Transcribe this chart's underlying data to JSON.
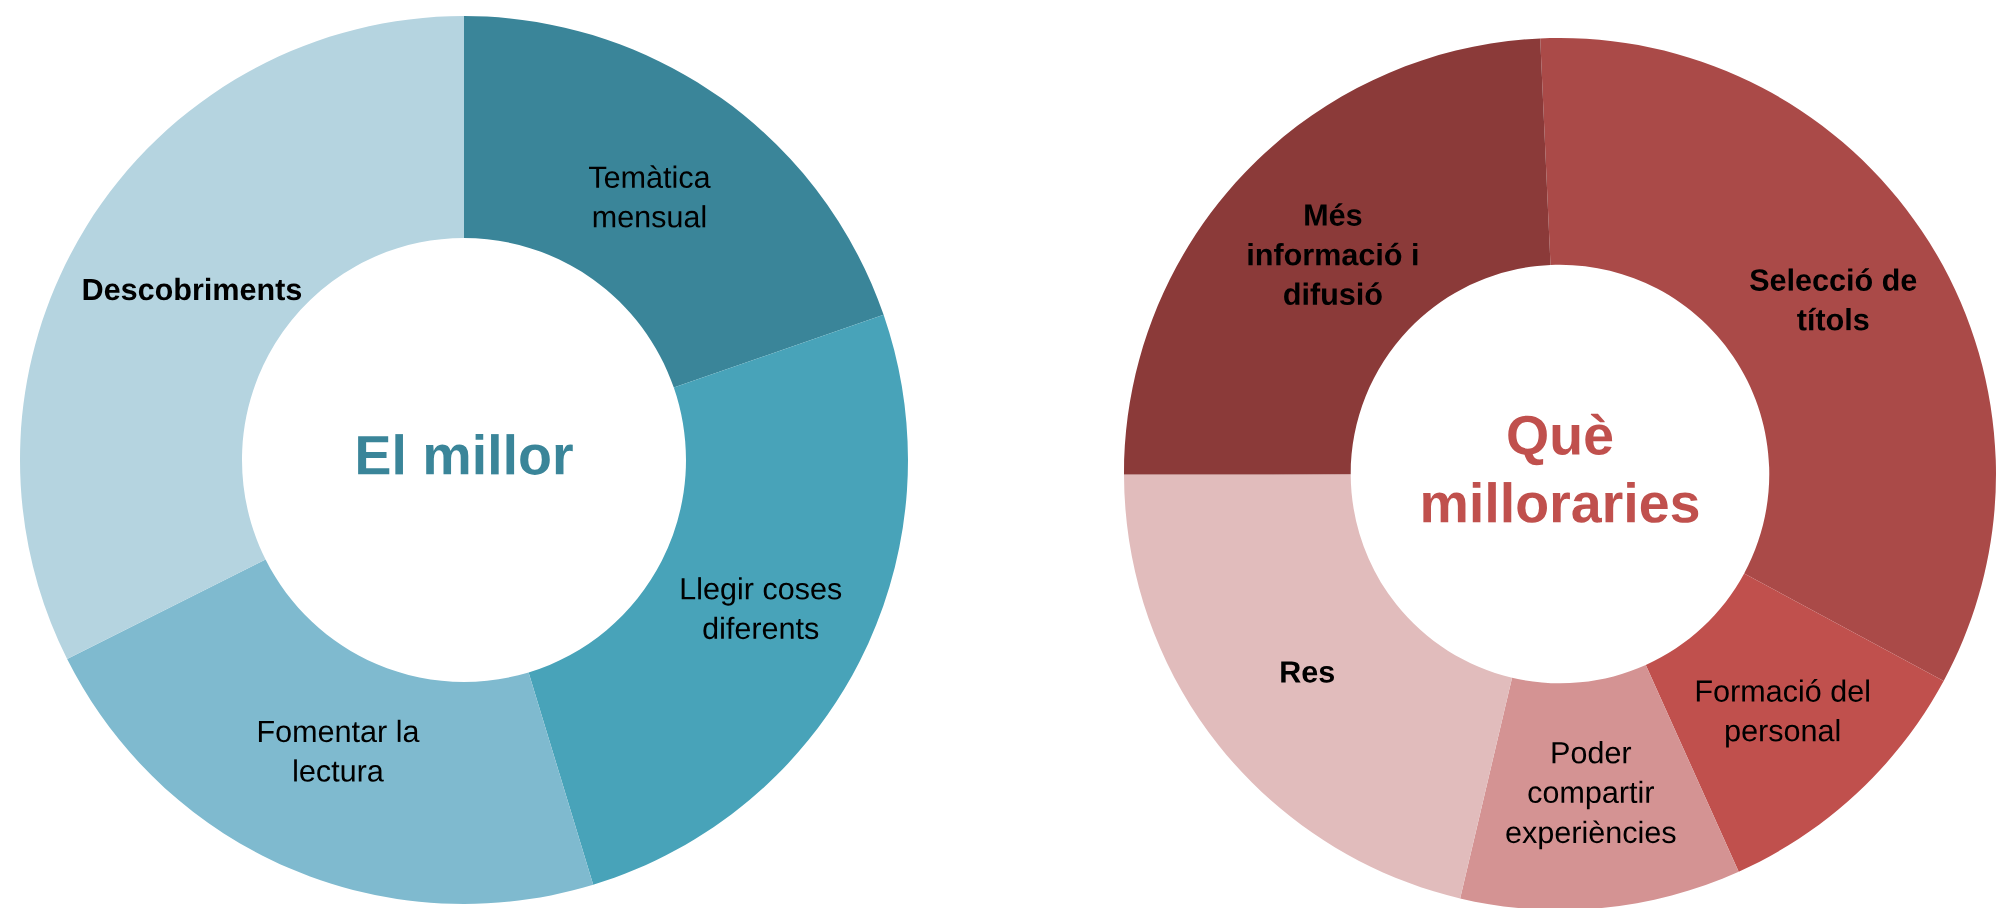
{
  "chart_data": [
    {
      "type": "donut",
      "title": "El millor",
      "categories": [
        "Temàtica\nmensual",
        "Llegir coses\ndiferents",
        "Fomentar la\nlectura",
        "Descobriments"
      ],
      "values": [
        19.7,
        25.6,
        22.3,
        32.4
      ],
      "colors": [
        "#3a8599",
        "#48a3b9",
        "#7fbacf",
        "#b5d4e0"
      ],
      "legend": false
    },
    {
      "type": "donut",
      "title": "Què\nmilloraries",
      "categories": [
        "Selecció de\ntítols",
        "Formació del\npersonal",
        "Poder\ncompartir\nexperiències",
        "Res",
        "Més\ninformació i\ndifusió"
      ],
      "values": [
        33.6,
        10.4,
        10.4,
        21.3,
        24.3
      ],
      "colors": [
        "#aa4a48",
        "#c0504d",
        "#d49393",
        "#e1bcbc",
        "#8b3a39"
      ],
      "legend": false
    }
  ]
}
